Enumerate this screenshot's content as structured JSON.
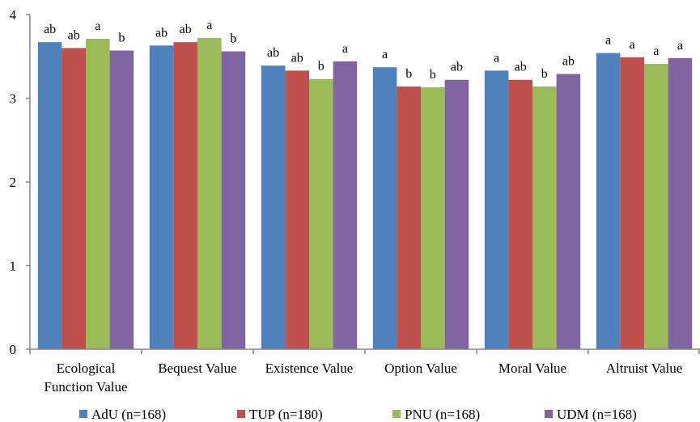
{
  "chart_data": {
    "type": "bar",
    "categories": [
      [
        "Ecological",
        "Function Value"
      ],
      [
        "Bequest Value"
      ],
      [
        "Existence Value"
      ],
      [
        "Option Value"
      ],
      [
        "Moral Value"
      ],
      [
        "Altruist Value"
      ]
    ],
    "ylim": [
      0,
      4
    ],
    "yticks": [
      "0",
      "1",
      "2",
      "3",
      "4"
    ],
    "grid": false,
    "legend_position": "bottom",
    "series": [
      {
        "name": "AdU (n=168)",
        "color": "#4F81BD",
        "values": [
          3.67,
          3.63,
          3.39,
          3.37,
          3.33,
          3.54
        ],
        "letters": [
          "ab",
          "ab",
          "ab",
          "a",
          "a",
          "a"
        ]
      },
      {
        "name": "TUP (n=180)",
        "color": "#C0504D",
        "values": [
          3.6,
          3.67,
          3.33,
          3.14,
          3.22,
          3.49
        ],
        "letters": [
          "ab",
          "ab",
          "ab",
          "b",
          "ab",
          "a"
        ]
      },
      {
        "name": "PNU (n=168)",
        "color": "#9BBB59",
        "values": [
          3.71,
          3.72,
          3.23,
          3.13,
          3.14,
          3.41
        ],
        "letters": [
          "a",
          "a",
          "b",
          "b",
          "b",
          "a"
        ]
      },
      {
        "name": "UDM (n=168)",
        "color": "#8064A2",
        "values": [
          3.57,
          3.56,
          3.44,
          3.22,
          3.29,
          3.48
        ],
        "letters": [
          "b",
          "b",
          "a",
          "ab",
          "ab",
          "a"
        ]
      }
    ]
  }
}
